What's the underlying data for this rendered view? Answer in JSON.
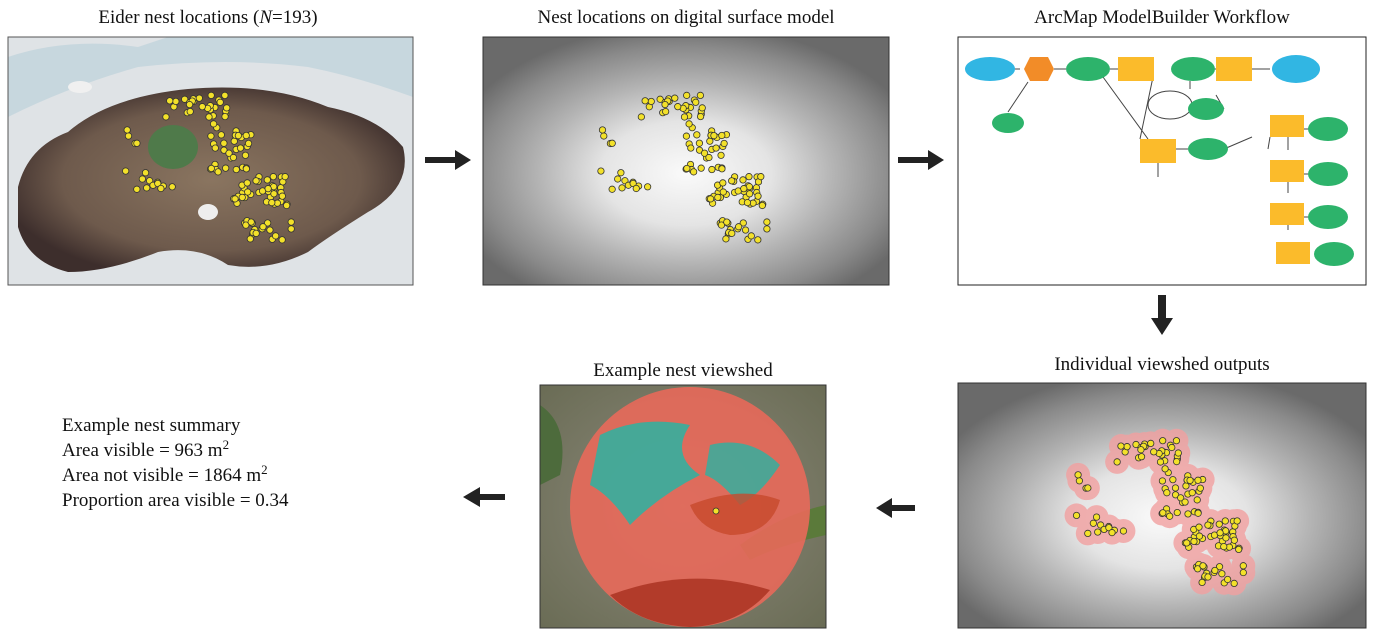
{
  "panels": {
    "nest_locations": {
      "title_parts": [
        "Eider nest locations (",
        "N",
        "=193)"
      ]
    },
    "dsm": {
      "title": "Nest locations on digital surface model"
    },
    "workflow": {
      "title": "ArcMap ModelBuilder Workflow"
    },
    "viewshed_outputs": {
      "title": "Individual viewshed outputs"
    },
    "example_viewshed": {
      "title": "Example nest viewshed"
    }
  },
  "summary": {
    "heading": "Example nest summary",
    "lines": [
      {
        "text": "Area visible = 963 m",
        "sup": "2"
      },
      {
        "text": "Area not visible = 1864 m",
        "sup": "2"
      },
      {
        "text": "Proportion area visible = 0.34"
      }
    ]
  }
}
